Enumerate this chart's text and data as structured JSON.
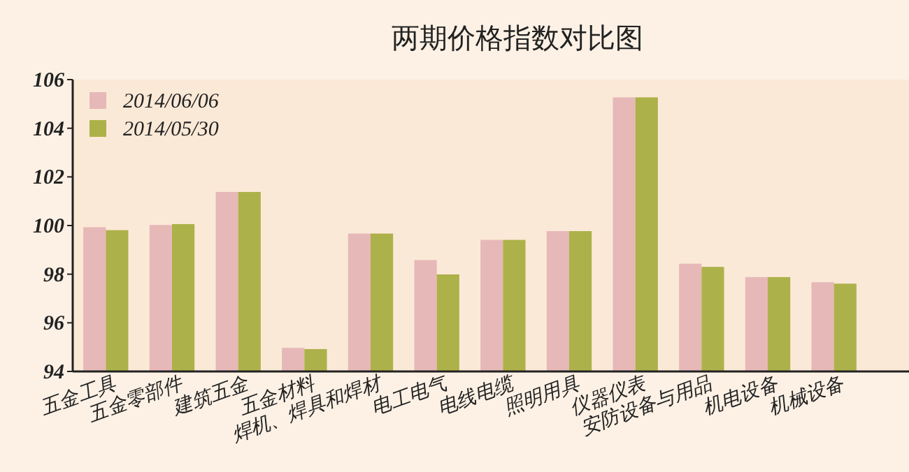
{
  "chart_data": {
    "type": "bar",
    "title": "两期价格指数对比图",
    "categories": [
      "五金工具",
      "五金零部件",
      "建筑五金",
      "五金材料",
      "焊机、焊具和焊材",
      "电工电气",
      "电线电缆",
      "照明用具",
      "仪器仪表",
      "安防设备与用品",
      "机电设备",
      "机械设备"
    ],
    "series": [
      {
        "name": "2014/06/06",
        "color": "#e6b8b8",
        "values": [
          99.93,
          100.02,
          101.38,
          94.97,
          99.67,
          98.58,
          99.41,
          99.77,
          105.27,
          98.43,
          97.88,
          97.67
        ]
      },
      {
        "name": "2014/05/30",
        "color": "#adb14a",
        "values": [
          99.81,
          100.06,
          101.38,
          94.92,
          99.67,
          97.99,
          99.41,
          99.77,
          105.27,
          98.3,
          97.88,
          97.61
        ]
      }
    ],
    "ylim": [
      94,
      106
    ],
    "yticks": [
      94,
      96,
      98,
      100,
      102,
      104,
      106
    ],
    "grid": false,
    "legend": "top left"
  }
}
